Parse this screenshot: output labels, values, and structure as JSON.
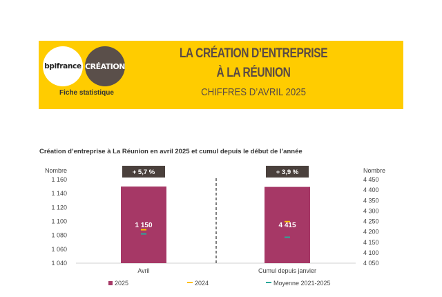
{
  "header": {
    "logo_bpi": "bpifrance",
    "logo_creation": "CRÉATION",
    "subtitle_left": "Fiche statistique",
    "title_line1": "LA CRÉATION D’ENTREPRISE",
    "title_line2": "À LA RÉUNION",
    "title_line3": "CHIFFRES D’AVRIL 2025",
    "colors": {
      "banner": "#ffcc00",
      "title_text": "#5a4a45",
      "logo_creation_bg": "#5a4f4a"
    }
  },
  "chart_data": {
    "type": "bar",
    "title": "Création d’entreprise à La Réunion en avril 2025 et cumul depuis le début de l’année",
    "left_axis": {
      "label": "Nombre",
      "ylim": [
        1040,
        1160
      ],
      "ticks": [
        "1 160",
        "1 140",
        "1 120",
        "1 100",
        "1 080",
        "1 060",
        "1 040"
      ]
    },
    "right_axis": {
      "label": "Nombre",
      "ylim": [
        4050,
        4450
      ],
      "ticks": [
        "4 450",
        "4 400",
        "4 350",
        "4 300",
        "4 250",
        "4 200",
        "4 150",
        "4 100",
        "4 050"
      ]
    },
    "categories": [
      "Avril",
      "Cumul depuis janvier"
    ],
    "series": [
      {
        "name": "2025",
        "values": [
          1150,
          4415
        ],
        "labels": [
          "1 150",
          "4 415"
        ],
        "color": "#a63866"
      },
      {
        "name": "2024",
        "values": [
          1088,
          4249
        ],
        "color": "#ffc000"
      },
      {
        "name": "Moyenne 2021-2025",
        "values": [
          1082,
          4174
        ],
        "color": "#2aa89a"
      }
    ],
    "changes": [
      "+ 5,7 %",
      "+ 3,9 %"
    ],
    "badge_color": "#4a403c",
    "grid": false,
    "legend_position": "bottom"
  }
}
